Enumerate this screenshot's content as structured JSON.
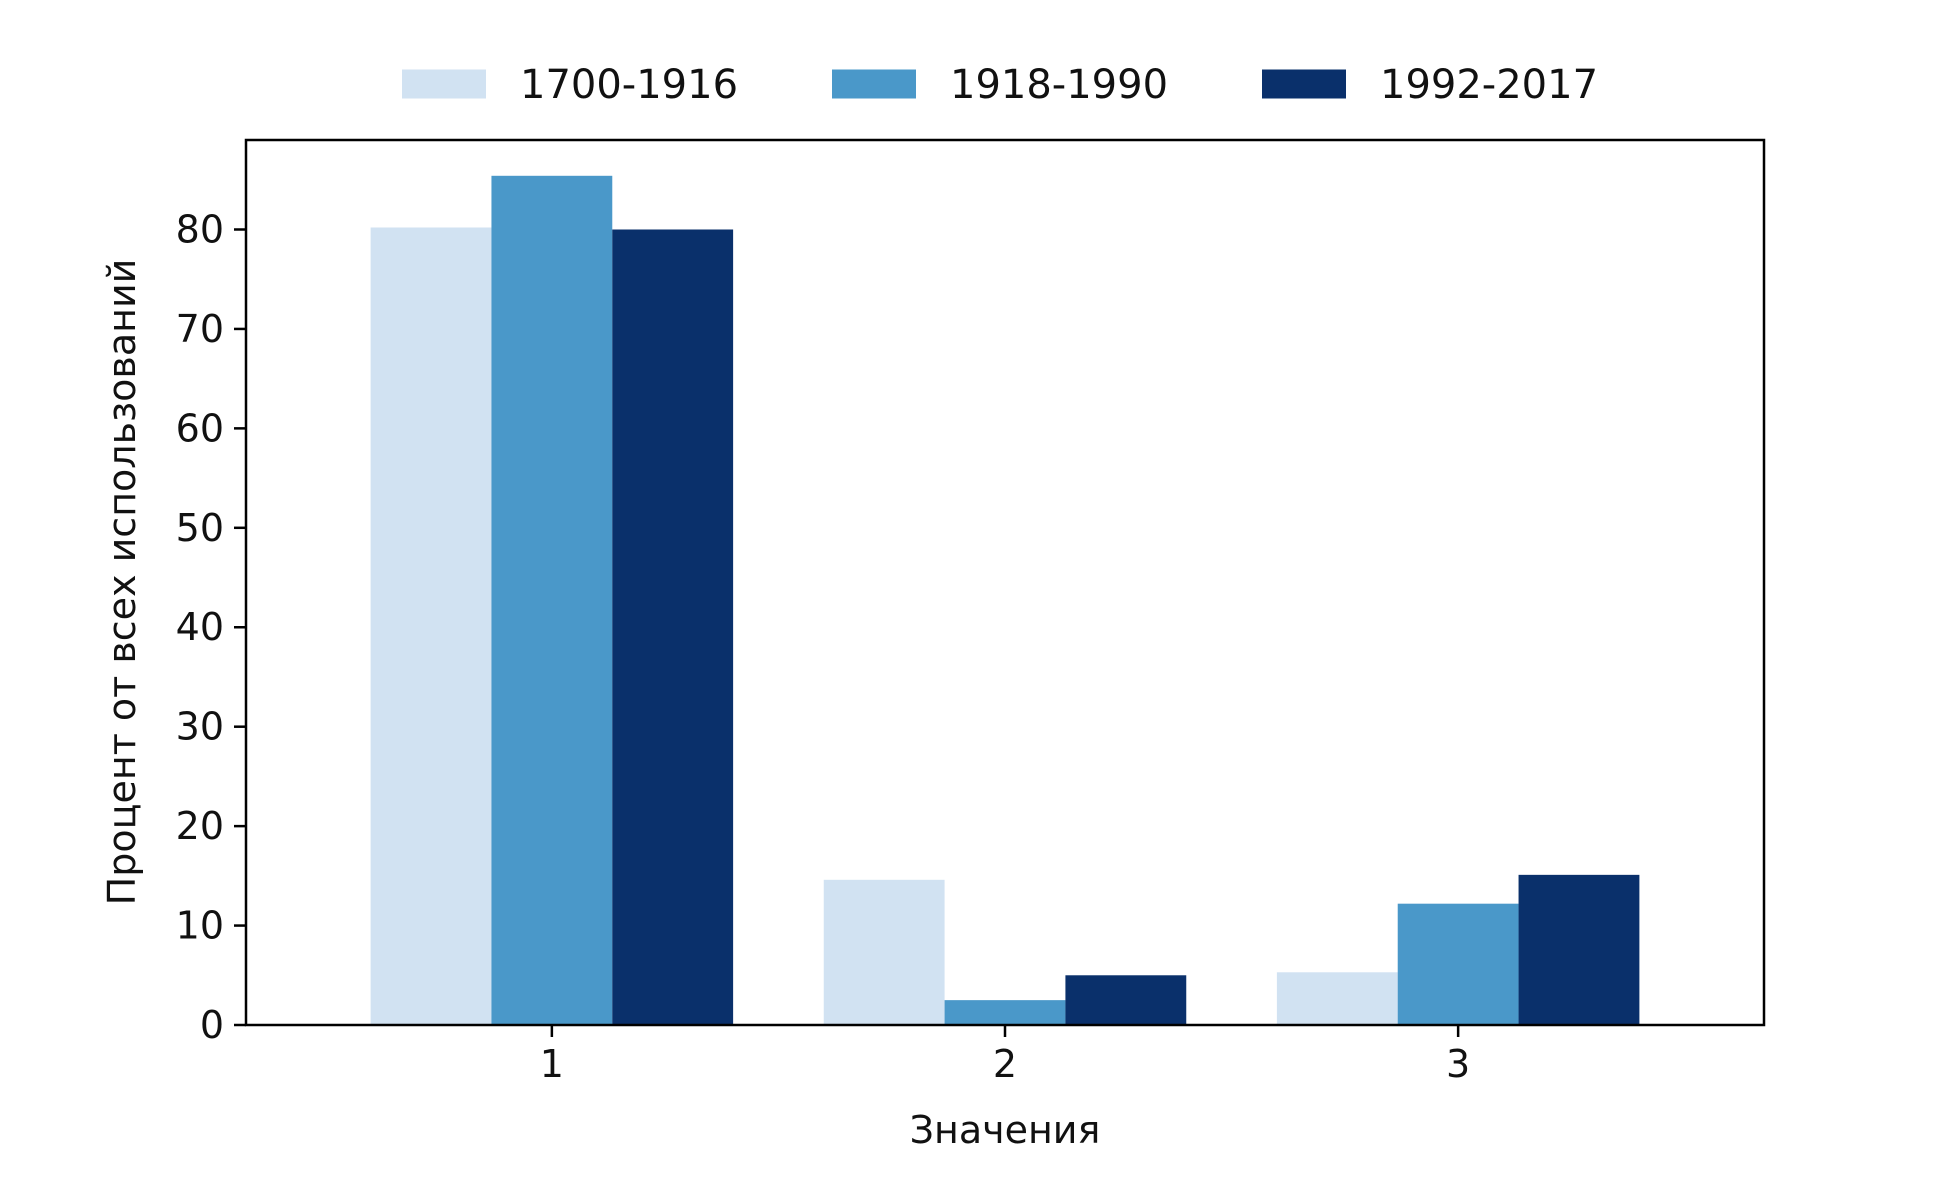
{
  "chart_data": {
    "type": "bar",
    "title": "",
    "xlabel": "Значения",
    "ylabel": "Процент от всех использований",
    "categories": [
      "1",
      "2",
      "3"
    ],
    "series": [
      {
        "name": "1700-1916",
        "color": "#d1e2f2",
        "values": [
          80.2,
          14.6,
          5.3
        ]
      },
      {
        "name": "1918-1990",
        "color": "#4a98c9",
        "values": [
          85.4,
          2.5,
          12.2
        ]
      },
      {
        "name": "1992-2017",
        "color": "#0a306b",
        "values": [
          80.0,
          5.0,
          15.1
        ]
      }
    ],
    "ylim": [
      0,
      89
    ],
    "yticks": [
      0,
      10,
      20,
      30,
      40,
      50,
      60,
      70,
      80
    ],
    "legend_position": "top-center",
    "grid": false
  }
}
